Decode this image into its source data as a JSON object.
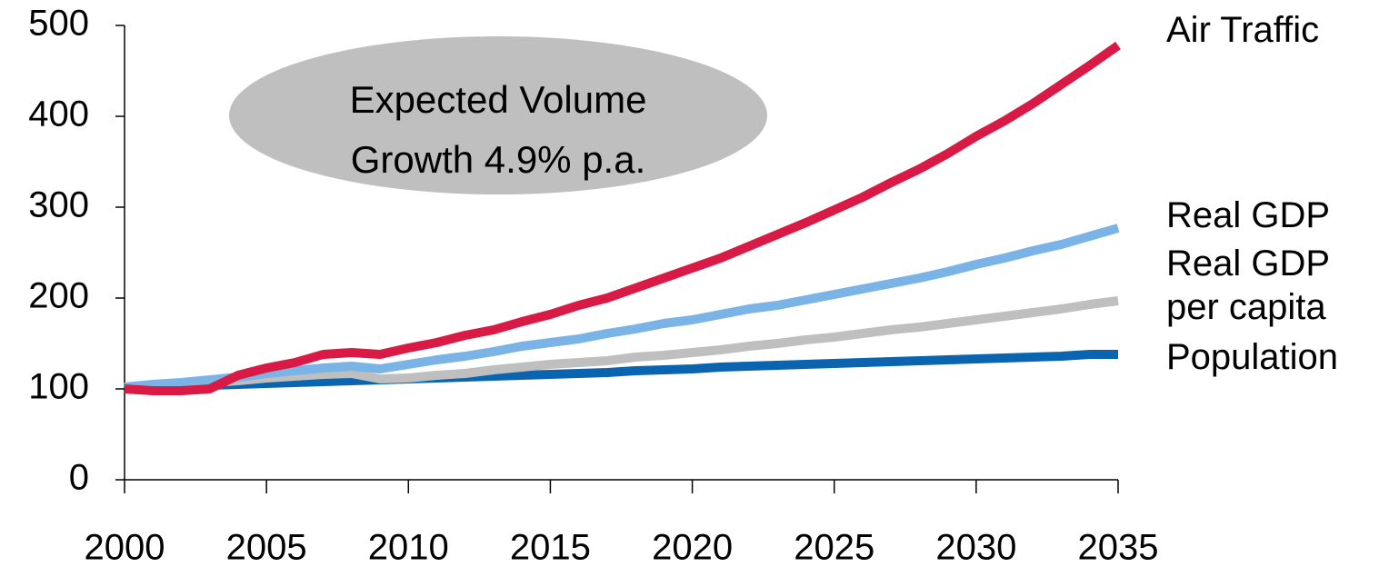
{
  "chart_data": {
    "type": "line",
    "annotation": "Expected Volume Growth 4.9% p.a.",
    "x": [
      2000,
      2001,
      2002,
      2003,
      2004,
      2005,
      2006,
      2007,
      2008,
      2009,
      2010,
      2011,
      2012,
      2013,
      2014,
      2015,
      2016,
      2017,
      2018,
      2019,
      2020,
      2021,
      2022,
      2023,
      2024,
      2025,
      2026,
      2027,
      2028,
      2029,
      2030,
      2031,
      2032,
      2033,
      2034,
      2035
    ],
    "series": [
      {
        "name": "Air Traffic",
        "color": "#d91a45",
        "values": [
          100,
          98,
          98,
          100,
          115,
          123,
          129,
          138,
          140,
          138,
          145,
          151,
          159,
          165,
          174,
          182,
          192,
          200,
          211,
          222,
          233,
          244,
          257,
          270,
          283,
          297,
          311,
          327,
          342,
          359,
          378,
          395,
          414,
          435,
          456,
          478
        ]
      },
      {
        "name": "Real GDP",
        "color": "#7ab4e6",
        "values": [
          102,
          105,
          107,
          110,
          113,
          117,
          120,
          123,
          125,
          122,
          127,
          132,
          136,
          141,
          147,
          151,
          155,
          161,
          166,
          172,
          176,
          182,
          188,
          192,
          198,
          204,
          210,
          216,
          222,
          229,
          237,
          244,
          252,
          259,
          268,
          277
        ]
      },
      {
        "name": "Real GDP per capita",
        "color": "#bfbfbf",
        "values": [
          100,
          103,
          105,
          107,
          109,
          112,
          114,
          116,
          117,
          111,
          112,
          115,
          117,
          121,
          124,
          127,
          129,
          131,
          135,
          137,
          140,
          143,
          147,
          150,
          154,
          157,
          161,
          165,
          168,
          172,
          176,
          180,
          184,
          188,
          193,
          197
        ]
      },
      {
        "name": "Population",
        "color": "#0a64b0",
        "values": [
          100,
          102,
          103,
          104,
          105,
          106,
          107,
          108,
          109,
          110,
          111,
          112,
          113,
          114,
          115,
          116,
          117,
          118,
          120,
          121,
          122,
          124,
          125,
          126,
          127,
          128,
          129,
          130,
          131,
          132,
          133,
          134,
          135,
          136,
          138,
          138
        ]
      }
    ],
    "xlim": [
      2000,
      2035
    ],
    "xticks": [
      2000,
      2005,
      2010,
      2015,
      2020,
      2025,
      2030,
      2035
    ],
    "ylim": [
      0,
      500
    ],
    "yticks": [
      0,
      100,
      200,
      300,
      400,
      500
    ]
  }
}
